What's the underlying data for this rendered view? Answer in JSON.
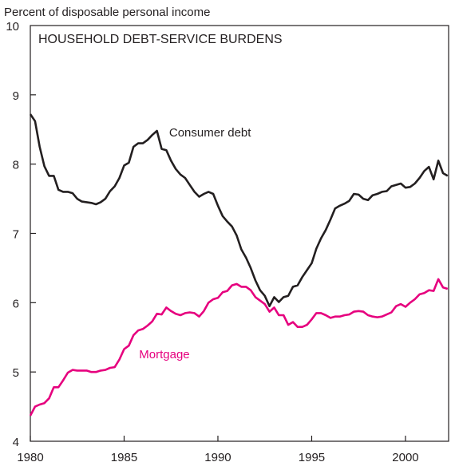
{
  "chart_data": {
    "type": "line",
    "title": "HOUSEHOLD DEBT-SERVICE BURDENS",
    "ylabel": "Percent of disposable personal income",
    "xlabel": "",
    "xlim": [
      1980,
      2002.3
    ],
    "ylim": [
      4,
      10
    ],
    "x_ticks": [
      1980,
      1985,
      1990,
      1995,
      2000
    ],
    "y_ticks": [
      4,
      5,
      6,
      7,
      8,
      9,
      10
    ],
    "grid": false,
    "series": [
      {
        "name": "Consumer debt",
        "color": "#231f20",
        "points": [
          [
            1980.0,
            8.72
          ],
          [
            1980.25,
            8.62
          ],
          [
            1980.5,
            8.25
          ],
          [
            1980.75,
            7.97
          ],
          [
            1981.0,
            7.83
          ],
          [
            1981.25,
            7.83
          ],
          [
            1981.5,
            7.63
          ],
          [
            1981.75,
            7.6
          ],
          [
            1982.0,
            7.6
          ],
          [
            1982.25,
            7.58
          ],
          [
            1982.5,
            7.5
          ],
          [
            1982.75,
            7.46
          ],
          [
            1983.0,
            7.45
          ],
          [
            1983.25,
            7.44
          ],
          [
            1983.5,
            7.42
          ],
          [
            1983.75,
            7.45
          ],
          [
            1984.0,
            7.5
          ],
          [
            1984.25,
            7.61
          ],
          [
            1984.5,
            7.68
          ],
          [
            1984.75,
            7.8
          ],
          [
            1985.0,
            7.98
          ],
          [
            1985.25,
            8.02
          ],
          [
            1985.5,
            8.25
          ],
          [
            1985.75,
            8.3
          ],
          [
            1986.0,
            8.3
          ],
          [
            1986.25,
            8.35
          ],
          [
            1986.5,
            8.42
          ],
          [
            1986.75,
            8.48
          ],
          [
            1987.0,
            8.22
          ],
          [
            1987.25,
            8.2
          ],
          [
            1987.5,
            8.05
          ],
          [
            1987.75,
            7.93
          ],
          [
            1988.0,
            7.85
          ],
          [
            1988.25,
            7.8
          ],
          [
            1988.5,
            7.7
          ],
          [
            1988.75,
            7.6
          ],
          [
            1989.0,
            7.53
          ],
          [
            1989.25,
            7.57
          ],
          [
            1989.5,
            7.6
          ],
          [
            1989.75,
            7.57
          ],
          [
            1990.0,
            7.4
          ],
          [
            1990.25,
            7.25
          ],
          [
            1990.5,
            7.17
          ],
          [
            1990.75,
            7.1
          ],
          [
            1991.0,
            6.97
          ],
          [
            1991.25,
            6.77
          ],
          [
            1991.5,
            6.65
          ],
          [
            1991.75,
            6.5
          ],
          [
            1992.0,
            6.32
          ],
          [
            1992.25,
            6.18
          ],
          [
            1992.5,
            6.1
          ],
          [
            1992.75,
            5.95
          ],
          [
            1993.0,
            6.08
          ],
          [
            1993.25,
            6.01
          ],
          [
            1993.5,
            6.08
          ],
          [
            1993.75,
            6.1
          ],
          [
            1994.0,
            6.23
          ],
          [
            1994.25,
            6.25
          ],
          [
            1994.5,
            6.37
          ],
          [
            1994.75,
            6.47
          ],
          [
            1995.0,
            6.57
          ],
          [
            1995.25,
            6.78
          ],
          [
            1995.5,
            6.93
          ],
          [
            1995.75,
            7.05
          ],
          [
            1996.0,
            7.2
          ],
          [
            1996.25,
            7.36
          ],
          [
            1996.5,
            7.4
          ],
          [
            1996.75,
            7.43
          ],
          [
            1997.0,
            7.47
          ],
          [
            1997.25,
            7.57
          ],
          [
            1997.5,
            7.56
          ],
          [
            1997.75,
            7.5
          ],
          [
            1998.0,
            7.48
          ],
          [
            1998.25,
            7.55
          ],
          [
            1998.5,
            7.57
          ],
          [
            1998.75,
            7.6
          ],
          [
            1999.0,
            7.61
          ],
          [
            1999.25,
            7.68
          ],
          [
            1999.5,
            7.7
          ],
          [
            1999.75,
            7.72
          ],
          [
            2000.0,
            7.66
          ],
          [
            2000.25,
            7.67
          ],
          [
            2000.5,
            7.72
          ],
          [
            2000.75,
            7.8
          ],
          [
            2001.0,
            7.9
          ],
          [
            2001.25,
            7.96
          ],
          [
            2001.5,
            7.78
          ],
          [
            2001.75,
            8.05
          ],
          [
            2002.0,
            7.87
          ],
          [
            2002.25,
            7.83
          ]
        ]
      },
      {
        "name": "Mortgage",
        "color": "#e6007e",
        "points": [
          [
            1980.0,
            4.37
          ],
          [
            1980.25,
            4.5
          ],
          [
            1980.5,
            4.53
          ],
          [
            1980.75,
            4.55
          ],
          [
            1981.0,
            4.62
          ],
          [
            1981.25,
            4.78
          ],
          [
            1981.5,
            4.78
          ],
          [
            1981.75,
            4.88
          ],
          [
            1982.0,
            4.99
          ],
          [
            1982.25,
            5.03
          ],
          [
            1982.5,
            5.02
          ],
          [
            1982.75,
            5.02
          ],
          [
            1983.0,
            5.02
          ],
          [
            1983.25,
            5.0
          ],
          [
            1983.5,
            5.0
          ],
          [
            1983.75,
            5.02
          ],
          [
            1984.0,
            5.03
          ],
          [
            1984.25,
            5.06
          ],
          [
            1984.5,
            5.07
          ],
          [
            1984.75,
            5.18
          ],
          [
            1985.0,
            5.33
          ],
          [
            1985.25,
            5.38
          ],
          [
            1985.5,
            5.53
          ],
          [
            1985.75,
            5.6
          ],
          [
            1986.0,
            5.62
          ],
          [
            1986.25,
            5.67
          ],
          [
            1986.5,
            5.73
          ],
          [
            1986.75,
            5.84
          ],
          [
            1987.0,
            5.83
          ],
          [
            1987.25,
            5.93
          ],
          [
            1987.5,
            5.88
          ],
          [
            1987.75,
            5.84
          ],
          [
            1988.0,
            5.82
          ],
          [
            1988.25,
            5.85
          ],
          [
            1988.5,
            5.86
          ],
          [
            1988.75,
            5.85
          ],
          [
            1989.0,
            5.8
          ],
          [
            1989.25,
            5.88
          ],
          [
            1989.5,
            6.0
          ],
          [
            1989.75,
            6.05
          ],
          [
            1990.0,
            6.07
          ],
          [
            1990.25,
            6.15
          ],
          [
            1990.5,
            6.17
          ],
          [
            1990.75,
            6.25
          ],
          [
            1991.0,
            6.27
          ],
          [
            1991.25,
            6.23
          ],
          [
            1991.5,
            6.23
          ],
          [
            1991.75,
            6.18
          ],
          [
            1992.0,
            6.08
          ],
          [
            1992.25,
            6.03
          ],
          [
            1992.5,
            5.98
          ],
          [
            1992.75,
            5.87
          ],
          [
            1993.0,
            5.93
          ],
          [
            1993.25,
            5.82
          ],
          [
            1993.5,
            5.82
          ],
          [
            1993.75,
            5.68
          ],
          [
            1994.0,
            5.72
          ],
          [
            1994.25,
            5.65
          ],
          [
            1994.5,
            5.65
          ],
          [
            1994.75,
            5.68
          ],
          [
            1995.0,
            5.76
          ],
          [
            1995.25,
            5.85
          ],
          [
            1995.5,
            5.85
          ],
          [
            1995.75,
            5.82
          ],
          [
            1996.0,
            5.78
          ],
          [
            1996.25,
            5.8
          ],
          [
            1996.5,
            5.8
          ],
          [
            1996.75,
            5.82
          ],
          [
            1997.0,
            5.83
          ],
          [
            1997.25,
            5.87
          ],
          [
            1997.5,
            5.88
          ],
          [
            1997.75,
            5.87
          ],
          [
            1998.0,
            5.82
          ],
          [
            1998.25,
            5.8
          ],
          [
            1998.5,
            5.79
          ],
          [
            1998.75,
            5.8
          ],
          [
            1999.0,
            5.83
          ],
          [
            1999.25,
            5.86
          ],
          [
            1999.5,
            5.95
          ],
          [
            1999.75,
            5.98
          ],
          [
            2000.0,
            5.94
          ],
          [
            2000.25,
            6.0
          ],
          [
            2000.5,
            6.05
          ],
          [
            2000.75,
            6.12
          ],
          [
            2001.0,
            6.14
          ],
          [
            2001.25,
            6.18
          ],
          [
            2001.5,
            6.17
          ],
          [
            2001.75,
            6.34
          ],
          [
            2002.0,
            6.22
          ],
          [
            2002.25,
            6.2
          ]
        ]
      }
    ],
    "annotations": [
      {
        "text": "Consumer debt",
        "series": "Consumer debt",
        "at": [
          1987.4,
          8.4
        ]
      },
      {
        "text": "Mortgage",
        "series": "Mortgage",
        "at": [
          1985.8,
          5.2
        ]
      }
    ]
  }
}
